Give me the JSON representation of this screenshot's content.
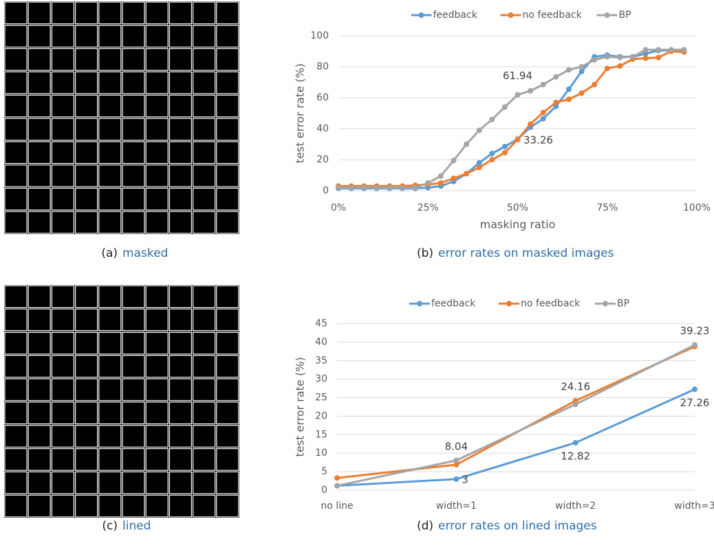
{
  "images": [
    {
      "label": "(a)",
      "caption": "masked"
    },
    {
      "label": "(c)",
      "caption": "lined"
    }
  ],
  "chart_data": [
    {
      "type": "line",
      "caption_label": "(b)",
      "caption": "error rates on masked images",
      "x_label": "masking ratio",
      "y_label": "test error rate (%)",
      "x": [
        0,
        3.571,
        7.143,
        10.714,
        14.286,
        17.857,
        21.429,
        25,
        28.571,
        32.143,
        35.714,
        39.286,
        42.857,
        46.429,
        50,
        53.571,
        57.143,
        60.714,
        64.286,
        67.857,
        71.429,
        75,
        78.571,
        82.143,
        85.714,
        89.286,
        92.857,
        96.429
      ],
      "xlim": [
        0,
        100
      ],
      "xticks": [
        {
          "value": 0,
          "label": "0%"
        },
        {
          "value": 25,
          "label": "25%"
        },
        {
          "value": 50,
          "label": "50%"
        },
        {
          "value": 75,
          "label": "75%"
        },
        {
          "value": 100,
          "label": "100%"
        }
      ],
      "ylim": [
        0,
        100
      ],
      "yticks": [
        0,
        20,
        40,
        60,
        80,
        100
      ],
      "grid": true,
      "series": [
        {
          "name": "feedback",
          "color": "#5b9bd5",
          "values": [
            1.5,
            1.5,
            1.5,
            1.5,
            1.5,
            1.5,
            1.5,
            2,
            3,
            6,
            11,
            18,
            24,
            28.5,
            33.26,
            41,
            46.5,
            54.5,
            65.5,
            77,
            86.5,
            87.5,
            86.5,
            86.5,
            88.5,
            90.5,
            90.5,
            90.5
          ],
          "value_labels": [
            null,
            null,
            null,
            null,
            null,
            null,
            null,
            null,
            null,
            null,
            null,
            null,
            null,
            null,
            "33.26",
            null,
            null,
            null,
            null,
            null,
            null,
            null,
            null,
            null,
            null,
            null,
            null,
            null
          ]
        },
        {
          "name": "no feedback",
          "color": "#ed7d31",
          "values": [
            3,
            3,
            3,
            3,
            3,
            3,
            3.5,
            4,
            5,
            8,
            11,
            15,
            20,
            24.5,
            33,
            43,
            50.5,
            57,
            59,
            63,
            68.5,
            79,
            80.5,
            85,
            85.5,
            86,
            90,
            89.5
          ]
        },
        {
          "name": "BP",
          "color": "#a5a5a5",
          "values": [
            2,
            2,
            2,
            2,
            2,
            2,
            2,
            5,
            9.5,
            19.5,
            30,
            39,
            46,
            54,
            61.94,
            64.5,
            68.5,
            73.5,
            78,
            80,
            84.5,
            86.5,
            86,
            86.5,
            91,
            91,
            91,
            91
          ],
          "value_labels": [
            null,
            null,
            null,
            null,
            null,
            null,
            null,
            null,
            null,
            null,
            null,
            null,
            null,
            null,
            "61.94",
            null,
            null,
            null,
            null,
            null,
            null,
            null,
            null,
            null,
            null,
            null,
            null,
            null
          ]
        }
      ]
    },
    {
      "type": "line",
      "caption_label": "(d)",
      "caption": "error rates on lined images",
      "y_label": "test error rate (%)",
      "categories": [
        "no line",
        "width=1",
        "width=2",
        "width=3"
      ],
      "ylim": [
        0,
        45
      ],
      "yticks": [
        0,
        5,
        10,
        15,
        20,
        25,
        30,
        35,
        40,
        45
      ],
      "grid": true,
      "series": [
        {
          "name": "feedback",
          "color": "#5b9bd5",
          "values": [
            1.2,
            3,
            12.82,
            27.26
          ],
          "value_labels": [
            null,
            "3",
            "12.82",
            "27.26"
          ]
        },
        {
          "name": "no feedback",
          "color": "#ed7d31",
          "values": [
            3.3,
            6.9,
            24.16,
            38.8
          ],
          "value_labels": [
            null,
            null,
            "24.16",
            null
          ]
        },
        {
          "name": "BP",
          "color": "#a5a5a5",
          "values": [
            1.2,
            8.04,
            23.2,
            39.23
          ],
          "value_labels": [
            null,
            "8.04",
            null,
            "39.23"
          ]
        }
      ]
    }
  ]
}
